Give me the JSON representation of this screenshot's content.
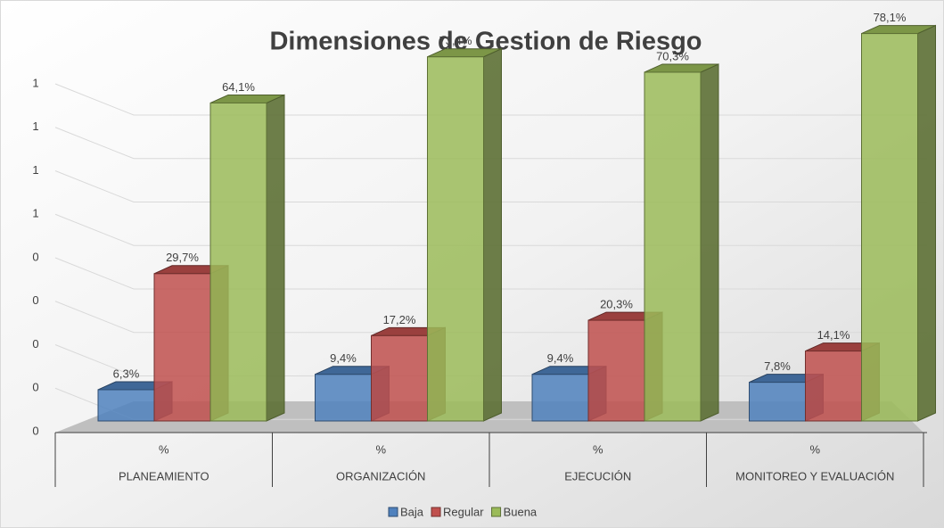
{
  "chart_data": {
    "type": "bar3d",
    "title": "Dimensiones de Gestion de Riesgo",
    "categories": [
      "PLANEAMIENTO",
      "ORGANIZACIÓN",
      "EJECUCIÓN",
      "MONITOREO Y EVALUACIÓN"
    ],
    "subcategories": [
      "%",
      "%",
      "%",
      "%"
    ],
    "series": [
      {
        "name": "Baja",
        "color": "#4f81bd",
        "values": [
          0.063,
          0.094,
          0.094,
          0.078
        ],
        "value_labels": [
          "6,3%",
          "9,4%",
          "9,4%",
          "7,8%"
        ]
      },
      {
        "name": "Regular",
        "color": "#c0504d",
        "values": [
          0.297,
          0.172,
          0.203,
          0.141
        ],
        "value_labels": [
          "29,7%",
          "17,2%",
          "20,3%",
          "14,1%"
        ]
      },
      {
        "name": "Buena",
        "color": "#9bbb59",
        "values": [
          0.641,
          0.734,
          0.703,
          0.781
        ],
        "value_labels": [
          "64,1%",
          "73,4%",
          "70,3%",
          "78,1%"
        ]
      }
    ],
    "ylim": [
      0,
      0.8
    ],
    "yticks": [
      0,
      {
        "value": 0.1,
        "label": "0"
      },
      {
        "value": 0.2,
        "label": "0"
      },
      {
        "value": 0.3,
        "label": "0"
      },
      {
        "value": 0.4,
        "label": "0"
      },
      {
        "value": 0.5,
        "label": "1"
      },
      {
        "value": 0.6,
        "label": "1"
      },
      {
        "value": 0.7,
        "label": "1"
      },
      {
        "value": 0.8,
        "label": "1"
      }
    ],
    "grid": true,
    "legend": "bottom"
  }
}
